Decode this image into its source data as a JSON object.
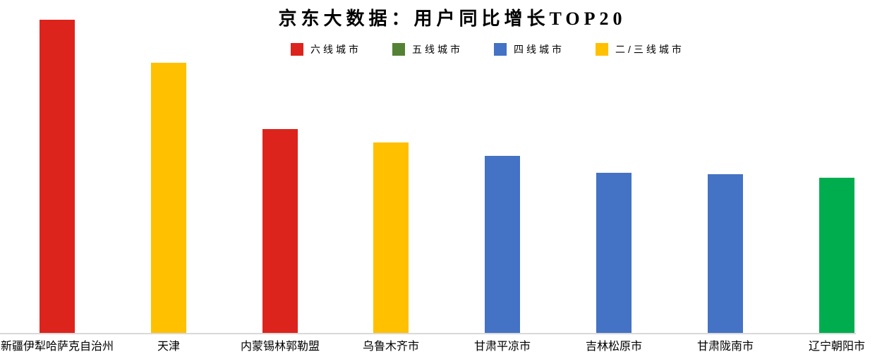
{
  "title": "京东大数据：用户同比增长TOP20",
  "legend": {
    "items": [
      {
        "label": "六线城市",
        "color": "#dc241c"
      },
      {
        "label": "五线城市",
        "color": "#548235"
      },
      {
        "label": "四线城市",
        "color": "#4472c4"
      },
      {
        "label": "二/三线城市",
        "color": "#ffc000"
      }
    ]
  },
  "colors": {
    "tier6_red": "#dc241c",
    "tier5_legend_green": "#548235",
    "tier5_bar_green": "#00ad4e",
    "tier4_blue": "#4472c4",
    "tier23_yellow": "#ffc000",
    "axis_line": "#d9d9d9",
    "text": "#000000",
    "background": "#ffffff"
  },
  "chart_data": {
    "type": "bar",
    "title": "京东大数据：用户同比增长TOP20",
    "categories": [
      "新疆伊犁哈萨克自治州",
      "天津",
      "内蒙锡林郭勒盟",
      "乌鲁木齐市",
      "甘肃平凉市",
      "吉林松原市",
      "甘肃陇南市",
      "辽宁朝阳市"
    ],
    "values": [
      100,
      86.3,
      65.2,
      60.9,
      56.6,
      51.2,
      50.8,
      49.7
    ],
    "values_note": "No value axis, gridlines or data labels are shown in the chart; values are relative bar heights with the tallest bar = 100.",
    "bar_tiers": [
      "六线城市",
      "二/三线城市",
      "六线城市",
      "二/三线城市",
      "四线城市",
      "四线城市",
      "四线城市",
      "五线城市"
    ],
    "bar_colors": [
      "#dc241c",
      "#ffc000",
      "#dc241c",
      "#ffc000",
      "#4472c4",
      "#4472c4",
      "#4472c4",
      "#00ad4e"
    ],
    "legend_entries": [
      "六线城市",
      "五线城市",
      "四线城市",
      "二/三线城市"
    ],
    "legend_position": "top-center",
    "xlabel": "",
    "ylabel": "",
    "grid": false,
    "y_axis_visible": false
  }
}
